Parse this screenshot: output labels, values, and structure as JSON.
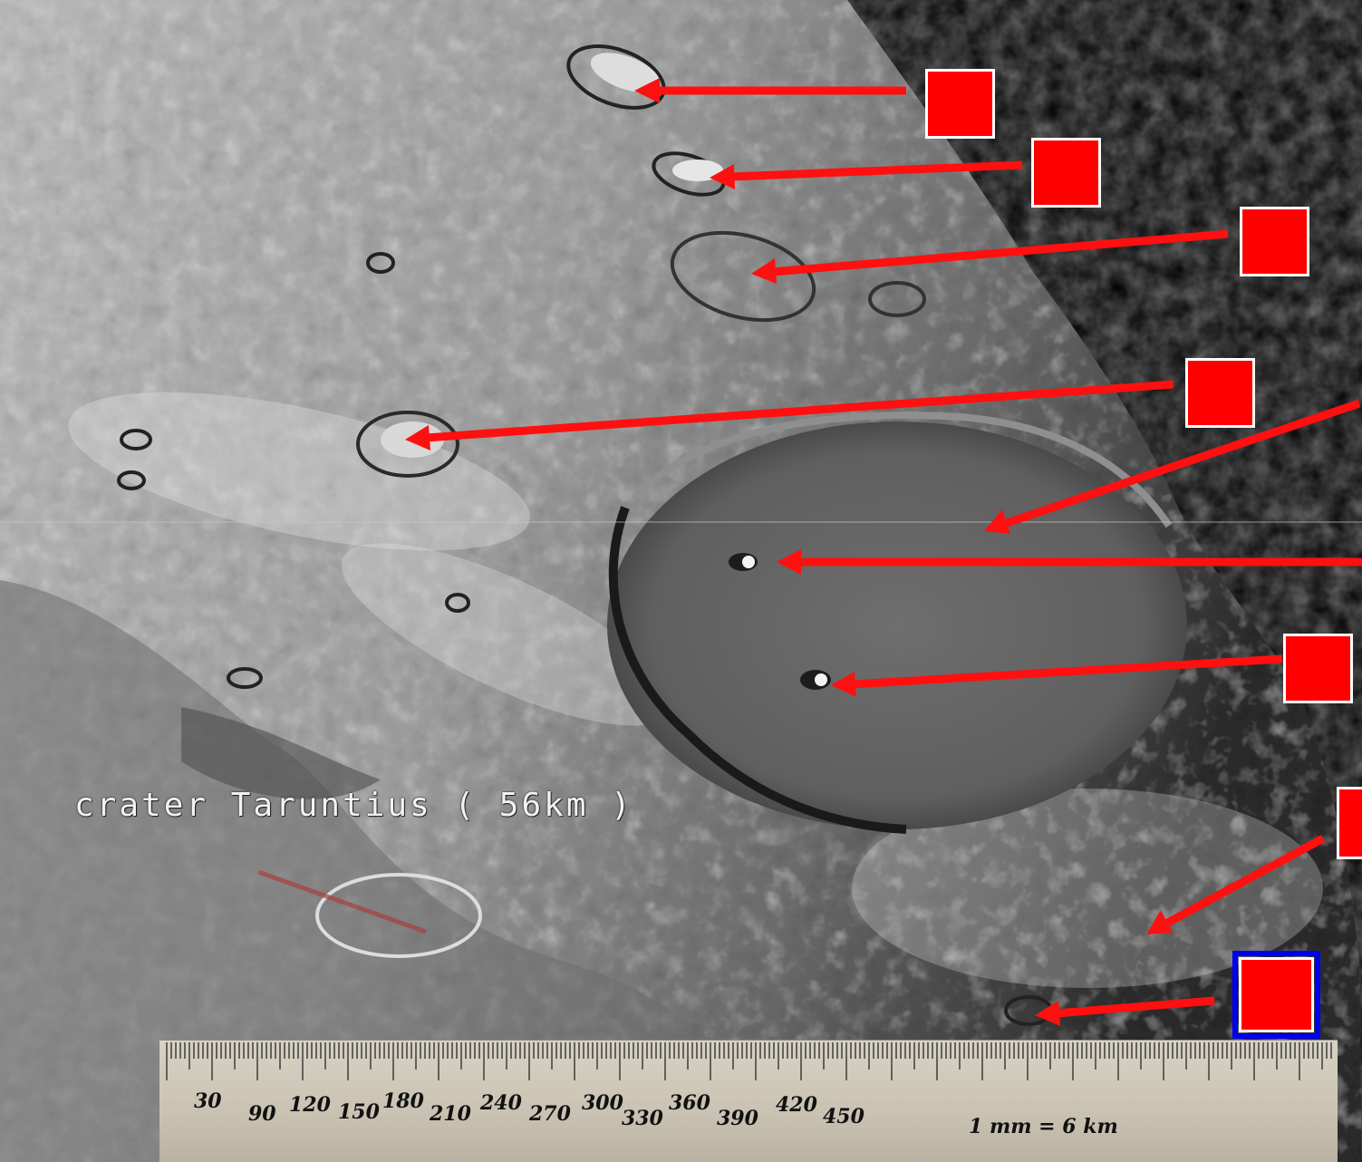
{
  "image": {
    "caption": "crater Taruntius ( 56km )",
    "scale_note": "1 mm = 6 km"
  },
  "ruler": {
    "labels": [
      "30",
      "90",
      "120",
      "150",
      "180",
      "210",
      "240",
      "270",
      "300",
      "330",
      "360",
      "390",
      "420",
      "450"
    ]
  },
  "markers": [
    {
      "id": "1",
      "selected": false
    },
    {
      "id": "2",
      "selected": false
    },
    {
      "id": "3",
      "selected": false
    },
    {
      "id": "4",
      "selected": false
    },
    {
      "id": "5",
      "selected": false
    },
    {
      "id": "6",
      "selected": false
    },
    {
      "id": "7",
      "selected": false
    },
    {
      "id": "8",
      "selected": false
    },
    {
      "id": "9",
      "selected": true
    }
  ],
  "colors": {
    "marker": "#ff0000",
    "marker_border": "#ffffff",
    "selected_border": "#0000ee",
    "arrow": "#ff1010"
  }
}
